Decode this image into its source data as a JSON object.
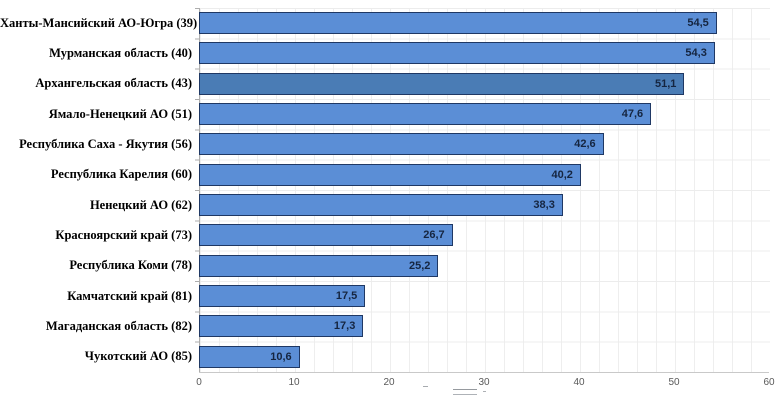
{
  "chart_data": {
    "type": "bar",
    "orientation": "horizontal",
    "title": "",
    "xlabel": "",
    "ylabel": "",
    "xlim": [
      0,
      60
    ],
    "x_ticks": [
      "0",
      "10",
      "20",
      "30",
      "40",
      "50",
      "60"
    ],
    "grid": "minor vertical gridlines every 2 units, faint horizontal row separators",
    "legend": "none",
    "categories": [
      "Ханты-Мансийский АО-Югра (39)",
      "Мурманская область (40)",
      "Архангельская область (43)",
      "Ямало-Ненецкий АО (51)",
      "Республика Саха - Якутия (56)",
      "Республика Карелия (60)",
      "Ненецкий АО (62)",
      "Красноярский край (73)",
      "Республика Коми (78)",
      "Камчатский край (81)",
      "Магаданская область (82)",
      "Чукотский АО (85)"
    ],
    "values": [
      54.5,
      54.3,
      51.1,
      47.6,
      42.6,
      40.2,
      38.3,
      26.7,
      25.2,
      17.5,
      17.3,
      10.6
    ],
    "value_labels": [
      "54,5",
      "54,3",
      "51,1",
      "47,6",
      "42,6",
      "40,2",
      "38,3",
      "26,7",
      "25,2",
      "17,5",
      "17,3",
      "10,6"
    ],
    "highlighted_index": 2,
    "colors": {
      "bar_fill": "#5b8ed6",
      "bar_fill_highlight": "#4a7cb5",
      "bar_border": "#1f3864",
      "value_label": "#152540",
      "tick_label": "#595959",
      "gridline": "#eeeeee",
      "axis_line": "#adadad",
      "background": "#ffffff"
    }
  }
}
